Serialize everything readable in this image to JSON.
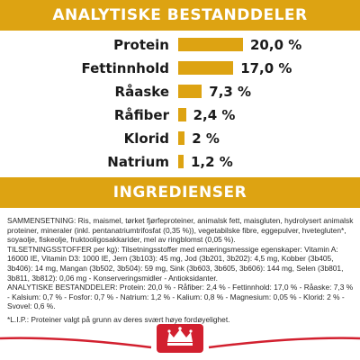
{
  "analysis": {
    "title": "ANALYTISKE BESTANDDELER",
    "rows": [
      {
        "label": "Protein",
        "value": "20,0 %",
        "percent": 20.0
      },
      {
        "label": "Fettinnhold",
        "value": "17,0 %",
        "percent": 17.0
      },
      {
        "label": "Råaske",
        "value": "7,3 %",
        "percent": 7.3
      },
      {
        "label": "Råfiber",
        "value": "2,4 %",
        "percent": 2.4
      },
      {
        "label": "Klorid",
        "value": "2 %",
        "percent": 2.0
      },
      {
        "label": "Natrium",
        "value": "1,2 %",
        "percent": 1.2
      }
    ]
  },
  "ingredients": {
    "title": "INGREDIENSER",
    "composition": "SAMMENSETNING: Ris, maismel, tørket fjørfeproteiner, animalsk fett, maisgluten, hydrolysert animalsk proteiner, mineraler (inkl. pentanatriumtrifosfat (0,35 %)), vegetabilske fibre, eggepulver, hvetegluten*, soyaolje, fiskeolje, fruktooligosakkarider, mel av ringblomst (0,05 %).",
    "additives": "TILSETNINGSSTOFFER per kg): Tilsetningsstoffer med ernæringsmessige egenskaper: Vitamin A: 16000 IE, Vitamin D3: 1000 IE, Jern (3b103): 45 mg, Jod (3b201, 3b202): 4,5 mg, Kobber (3b405, 3b406): 14 mg, Mangan (3b502, 3b504): 59 mg, Sink (3b603, 3b605, 3b606): 144 mg, Selen (3b801, 3b811, 3b812): 0,06 mg - Konserveringsmidler - Antioksidanter.",
    "analytical": "ANALYTISKE BESTANDDELER: Protein: 20,0 % - Råfiber: 2,4 % - Fettinnhold: 17,0 % - Råaske: 7,3 % - Kalsium: 0,7 % - Fosfor: 0,7 % - Natrium: 1,2 % - Kalium: 0,8 % - Magnesium: 0,05 % - Klorid: 2 % - Svovel: 0,6 %.",
    "footnote": "*L.I.P.: Proteiner valgt på grunn av deres svært høye fordøyelighet."
  },
  "colors": {
    "accent": "#dda312",
    "brand_red": "#d2202f"
  },
  "footer": {
    "logo_icon": "royal-canin-crown-logo"
  }
}
